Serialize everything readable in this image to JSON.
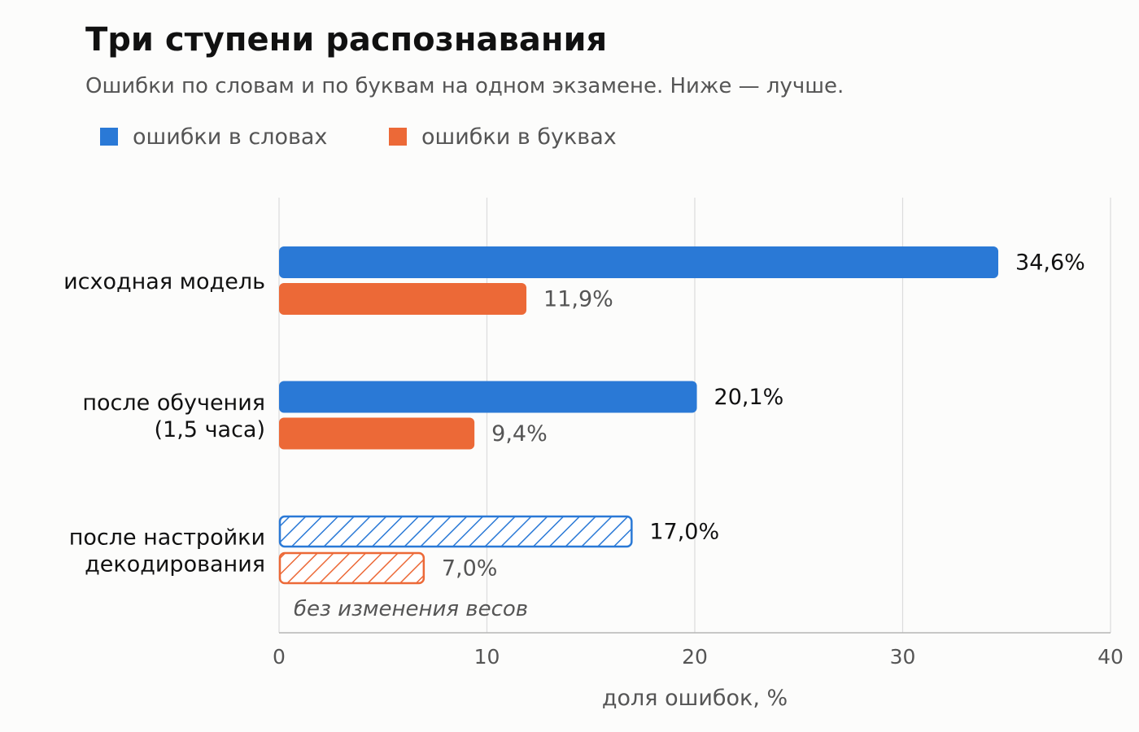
{
  "chart_data": {
    "type": "bar",
    "orientation": "horizontal",
    "title": "Три ступени распознавания",
    "subtitle": "Ошибки по словам и по буквам на одном экзамене. Ниже — лучше.",
    "xlabel": "доля ошибок, %",
    "xlim": [
      0,
      40
    ],
    "xticks": [
      "0",
      "10",
      "20",
      "30",
      "40"
    ],
    "grid": true,
    "legend_position": "top-left",
    "categories": [
      [
        "исходная модель"
      ],
      [
        "после обучения",
        "(1,5 часа)"
      ],
      [
        "после настройки",
        "декодирования"
      ]
    ],
    "series": [
      {
        "name": "ошибки в словах",
        "color": "#2a79d6",
        "values": [
          34.6,
          20.1,
          17.0
        ],
        "labels": [
          "34,6%",
          "20,1%",
          "17,0%"
        ]
      },
      {
        "name": "ошибки в буквах",
        "color": "#ec6937",
        "values": [
          11.9,
          9.4,
          7.0
        ],
        "labels": [
          "11,9%",
          "9,4%",
          "7,0%"
        ]
      }
    ],
    "hatched_category": 2,
    "annotation": "без изменения весов"
  }
}
